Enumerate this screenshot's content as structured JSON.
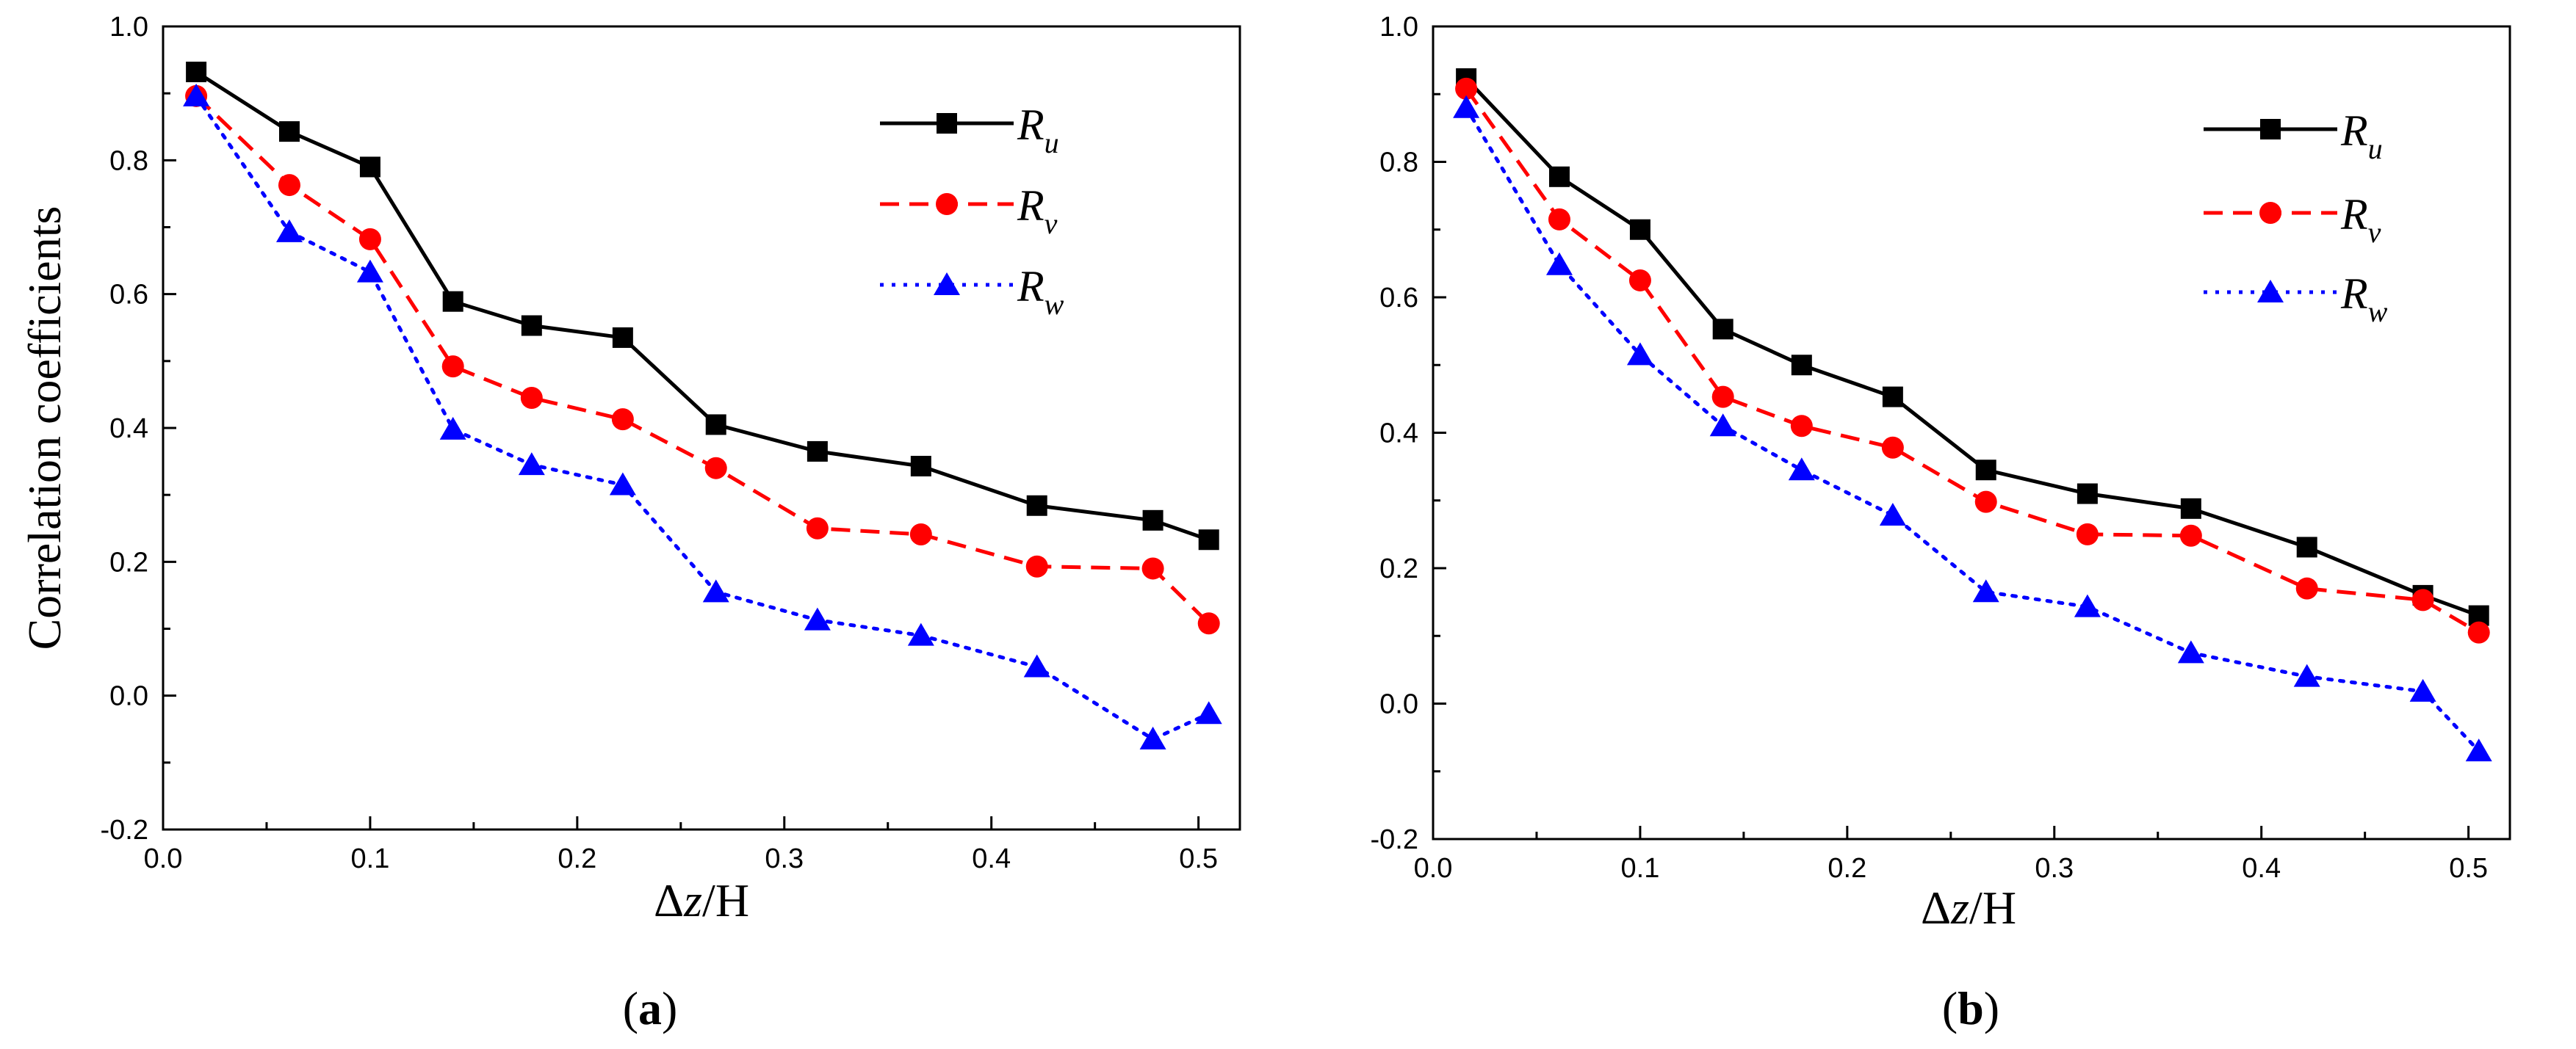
{
  "chart_data": [
    {
      "type": "line",
      "panel_label": "a",
      "xlabel_delta": "Δ",
      "xlabel_z": "z",
      "xlabel_rest": "/H",
      "ylabel": "Correlation coefficients",
      "xlim": [
        0.0,
        0.52
      ],
      "ylim": [
        -0.2,
        1.0
      ],
      "xticks": [
        "0.0",
        "0.1",
        "0.2",
        "0.3",
        "0.4",
        "0.5"
      ],
      "yticks": [
        "-0.2",
        "0.0",
        "0.2",
        "0.4",
        "0.6",
        "0.8",
        "1.0"
      ],
      "x": [
        0.016,
        0.061,
        0.1,
        0.14,
        0.178,
        0.222,
        0.267,
        0.316,
        0.366,
        0.422,
        0.478,
        0.505
      ],
      "series": [
        {
          "name": "R",
          "sub": "u",
          "color": "#000000",
          "dash": "solid",
          "marker": "square",
          "values": [
            0.932,
            0.843,
            0.79,
            0.589,
            0.553,
            0.535,
            0.405,
            0.365,
            0.343,
            0.284,
            0.262,
            0.233
          ]
        },
        {
          "name": "R",
          "sub": "v",
          "color": "#ff0000",
          "dash": "dashed",
          "marker": "circle",
          "values": [
            0.896,
            0.763,
            0.682,
            0.492,
            0.445,
            0.413,
            0.34,
            0.25,
            0.241,
            0.193,
            0.19,
            0.108
          ]
        },
        {
          "name": "R",
          "sub": "w",
          "color": "#0000ff",
          "dash": "dotted",
          "marker": "triangle",
          "values": [
            0.896,
            0.693,
            0.633,
            0.398,
            0.345,
            0.315,
            0.155,
            0.113,
            0.09,
            0.043,
            -0.065,
            -0.027
          ]
        }
      ]
    },
    {
      "type": "line",
      "panel_label": "b",
      "xlabel_delta": "Δ",
      "xlabel_z": "z",
      "xlabel_rest": "/H",
      "ylabel": "",
      "xlim": [
        0.0,
        0.52
      ],
      "ylim": [
        -0.2,
        1.0
      ],
      "xticks": [
        "0.0",
        "0.1",
        "0.2",
        "0.3",
        "0.4",
        "0.5"
      ],
      "yticks": [
        "-0.2",
        "0.0",
        "0.2",
        "0.4",
        "0.6",
        "0.8",
        "1.0"
      ],
      "x": [
        0.016,
        0.061,
        0.1,
        0.14,
        0.178,
        0.222,
        0.267,
        0.316,
        0.366,
        0.422,
        0.478,
        0.505
      ],
      "series": [
        {
          "name": "R",
          "sub": "u",
          "color": "#000000",
          "dash": "solid",
          "marker": "square",
          "values": [
            0.923,
            0.778,
            0.7,
            0.553,
            0.5,
            0.453,
            0.345,
            0.31,
            0.288,
            0.231,
            0.16,
            0.13
          ]
        },
        {
          "name": "R",
          "sub": "v",
          "color": "#ff0000",
          "dash": "dashed",
          "marker": "circle",
          "values": [
            0.908,
            0.715,
            0.625,
            0.453,
            0.41,
            0.378,
            0.298,
            0.25,
            0.248,
            0.17,
            0.153,
            0.105
          ]
        },
        {
          "name": "R",
          "sub": "w",
          "color": "#0000ff",
          "dash": "dotted",
          "marker": "triangle",
          "values": [
            0.88,
            0.648,
            0.515,
            0.41,
            0.345,
            0.278,
            0.165,
            0.143,
            0.075,
            0.04,
            0.018,
            -0.07
          ]
        }
      ]
    }
  ]
}
